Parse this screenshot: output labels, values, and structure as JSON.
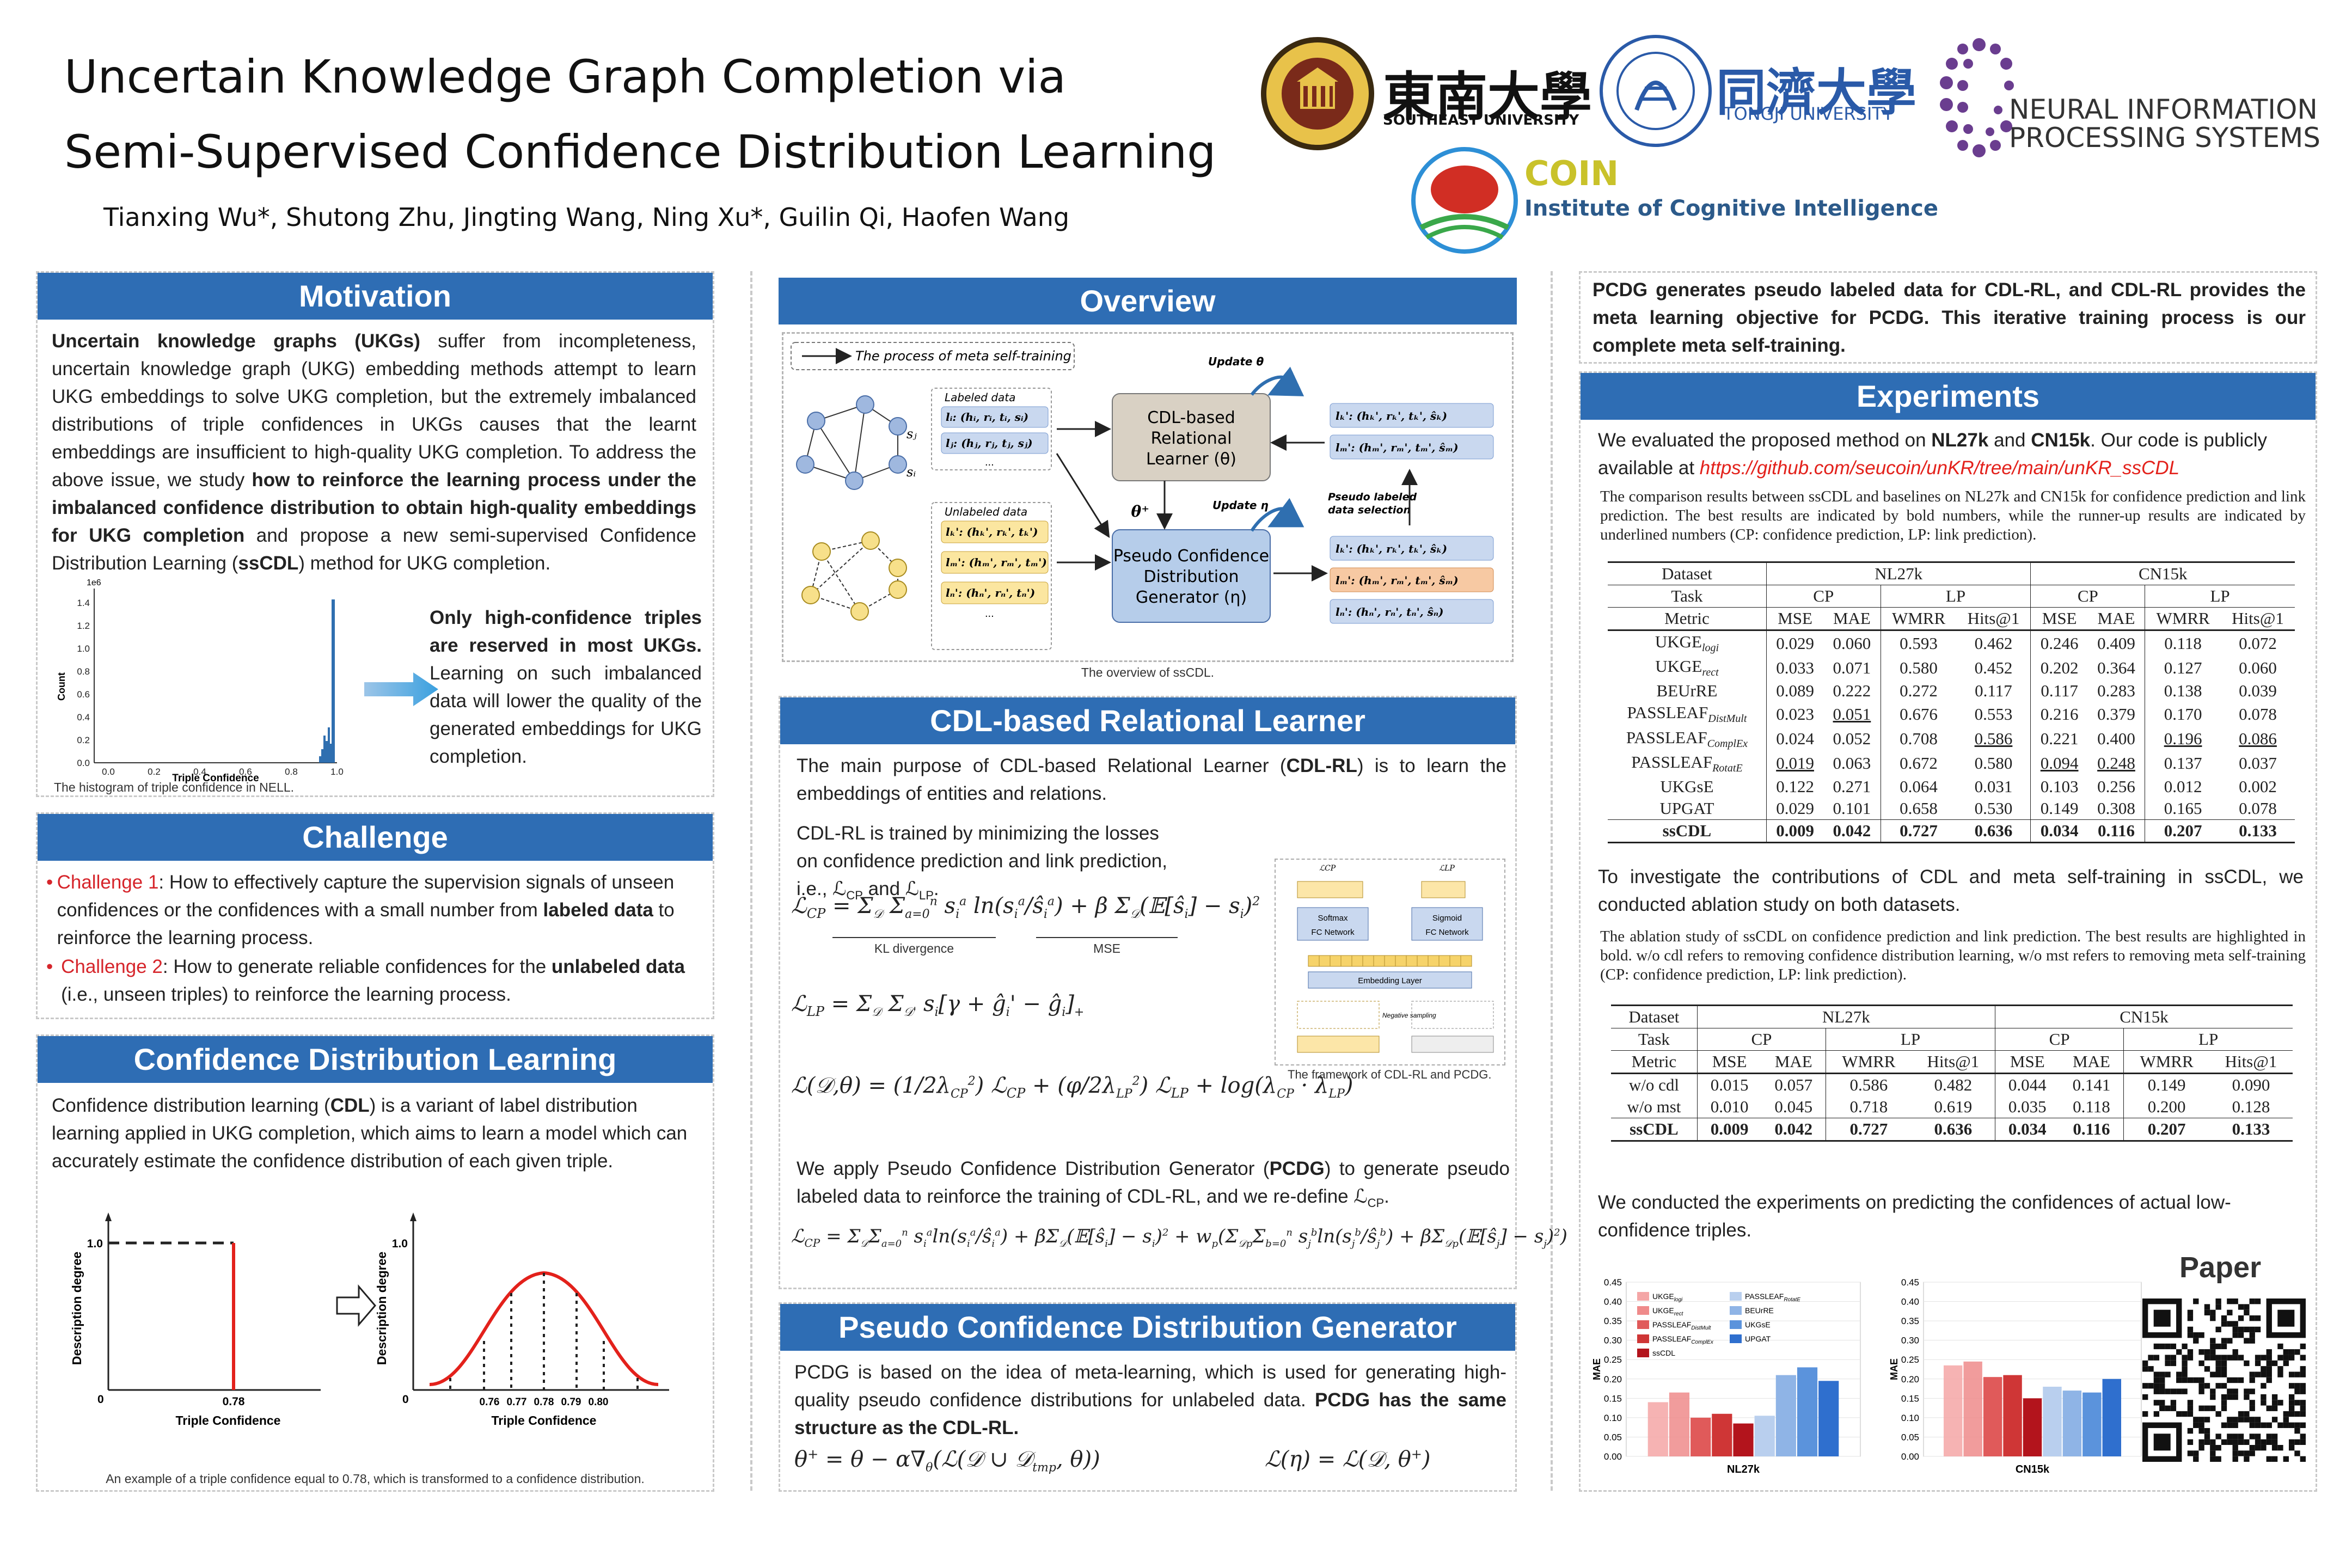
{
  "header": {
    "title_line1": "Uncertain Knowledge Graph Completion via",
    "title_line2": "Semi-Supervised Confidence Distribution Learning",
    "authors": "Tianxing Wu*, Shutong Zhu, Jingting Wang, Ning Xu*, Guilin Qi, Haofen Wang",
    "logos": {
      "seu_cn": "東南大學",
      "seu_en": "SOUTHEAST UNIVERSITY",
      "tongji_cn": "同濟大學",
      "tongji_en": "TONGJI UNIVERSITY",
      "neurips_1": "NEURAL INFORMATION",
      "neurips_2": "PROCESSING SYSTEMS",
      "coin": "COIN",
      "coin_sub": "Institute of Cognitive Intelligence"
    }
  },
  "motivation": {
    "title": "Motivation",
    "p_bold1": "Uncertain knowledge graphs (UKGs)",
    "p_1": " suffer from incompleteness, uncertain knowledge graph (UKG) embedding methods attempt to learn UKG embeddings to solve UKG completion, but the extremely imbalanced distributions of triple confidences in UKGs causes that the learnt embeddings are insufficient to high-quality UKG completion. To address the above issue, we study ",
    "p_bold2": "how to reinforce the learning process under the imbalanced confidence distribution to obtain high-quality embeddings for UKG completion",
    "p_2": " and propose a new semi-supervised Confidence Distribution Learning (",
    "p_bold3": "ssCDL",
    "p_3": ") method for UKG completion.",
    "hist_caption": "The histogram of triple confidence in NELL.",
    "hist_ylabel": "Count",
    "hist_xlabel": "Triple Confidence",
    "hist_scale": "1e6",
    "hist_yticks": [
      "0.0",
      "0.2",
      "0.4",
      "0.6",
      "0.8",
      "1.0",
      "1.2",
      "1.4"
    ],
    "hist_xticks": [
      "0.0",
      "0.2",
      "0.4",
      "0.6",
      "0.8",
      "1.0"
    ],
    "side_bold": "Only high-confidence triples are reserved in most UKGs.",
    "side_text": " Learning on such imbalanced data will lower the quality of the generated embeddings for UKG completion."
  },
  "challenge": {
    "title": "Challenge",
    "c1_label": "Challenge 1",
    "c1_a": ": How to effectively capture the supervision signals of unseen confidences or the confidences with a small number from ",
    "c1_bold": "labeled data",
    "c1_b": " to reinforce the learning process.",
    "c2_label": "Challenge 2",
    "c2_a": ": How to generate reliable confidences for the ",
    "c2_bold": "unlabeled data",
    "c2_b": " (i.e., unseen triples) to reinforce the learning process."
  },
  "cdl": {
    "title": "Confidence Distribution Learning",
    "p_a": "Confidence distribution learning (",
    "p_bold": "CDL",
    "p_b": ") is a variant of label distribution learning applied in UKG completion, which aims to learn a model which can accurately estimate the confidence distribution of each given triple.",
    "ylabel": "Description degree",
    "xlabel": "Triple Confidence",
    "left_x": "0.78",
    "ytick": "1.0",
    "zero": "0",
    "right_x": [
      "0.76",
      "0.77",
      "0.78",
      "0.79",
      "0.80"
    ],
    "caption": "An example of a triple confidence equal to 0.78, which is transformed to a confidence distribution."
  },
  "overview": {
    "title": "Overview",
    "legend": "The process of meta self-training",
    "labeled": "Labeled data",
    "unlabeled": "Unlabeled data",
    "learner": [
      "CDL-based",
      "Relational",
      "Learner (θ)"
    ],
    "generator": [
      "Pseudo Confidence",
      "Distribution",
      "Generator (η)"
    ],
    "update_theta": "Update θ",
    "update_eta": "Update η",
    "theta_plus": "θ⁺",
    "pseudo": [
      "Pseudo labeled",
      "data selection"
    ],
    "lab_items": [
      "lᵢ: (hᵢ, rᵢ, tᵢ, sᵢ)",
      "lⱼ: (hⱼ, rⱼ, tⱼ, sⱼ)"
    ],
    "unl_items": [
      "lₖ': (hₖ', rₖ', tₖ')",
      "lₘ': (hₘ', rₘ', tₘ')",
      "lₙ': (hₙ', rₙ', tₙ')"
    ],
    "out_top": [
      "lₖ': (hₖ', rₖ', tₖ', ŝₖ)",
      "lₘ': (hₘ', rₘ', tₘ', ŝₘ)"
    ],
    "out_bot": [
      "lₖ': (hₖ', rₖ', tₖ', ŝₖ)",
      "lₘ': (hₘ', rₘ', tₘ', ŝₘ)",
      "lₙ': (hₙ', rₙ', tₙ', ŝₙ)"
    ],
    "node_si": "sᵢ",
    "node_sj": "sⱼ",
    "ellipsis": "...",
    "caption": "The overview of ssCDL."
  },
  "cdlrl": {
    "title": "CDL-based Relational Learner",
    "p1_a": "The main purpose of CDL-based Relational Learner (",
    "p1_bold": "CDL-RL",
    "p1_b": ") is to learn the embeddings of entities and relations.",
    "p2": "CDL-RL is trained by minimizing the losses on confidence prediction and link prediction, i.e., ℒ",
    "p2_cp": "CP",
    "p2_and": " and ℒ",
    "p2_lp": "LP",
    "p2_end": ".",
    "kl": "KL divergence",
    "mse": "MSE",
    "fw_caption": "The framework of CDL-RL and PCDG.",
    "fw": {
      "softmax": "Softmax",
      "fc1": "FC Network",
      "sigmoid": "Sigmoid",
      "fc2": "FC Network",
      "emb": "Embedding Layer",
      "neg": "Negative sampling",
      "lcp": "ℒCP",
      "llp": "ℒLP"
    },
    "p3_a": "We apply Pseudo Confidence Distribution Generator (",
    "p3_bold": "PCDG",
    "p3_b": ") to generate pseudo labeled data to reinforce the training of CDL-RL, and we re-define ℒ",
    "p3_cp": "CP",
    "p3_end": "."
  },
  "pcdg": {
    "title": "Pseudo Confidence Distribution Generator",
    "p_a": "PCDG is based on the idea of meta-learning, which is used for generating high-quality pseudo confidence distributions for unlabeled data. ",
    "p_bold": "PCDG has the same structure as the CDL-RL."
  },
  "right": {
    "intro": "PCDG generates pseudo labeled data for CDL-RL, and CDL-RL provides the meta learning objective for PCDG. This iterative training process is our complete meta self-training.",
    "exp_title": "Experiments",
    "exp_a": "We evaluated the proposed method on ",
    "exp_b1": "NL27k",
    "exp_and": " and ",
    "exp_b2": "CN15k",
    "exp_c": ". Our code is publicly available at ",
    "link": "https://github.com/seucoin/unKR/tree/main/unKR_ssCDL",
    "t1_caption": "The comparison results between ssCDL and baselines on NL27k and CN15k for confidence prediction and link prediction. The best results are indicated by bold numbers, while the runner-up results are indicated by underlined numbers (CP: confidence prediction, LP: link prediction).",
    "abl_text": "To investigate the contributions of CDL and meta self-training in ssCDL, we conducted ablation study on both datasets.",
    "t2_caption": "The ablation study of ssCDL on confidence prediction and link prediction. The best results are highlighted in bold. w/o cdl refers to removing confidence distribution learning, w/o mst refers to removing meta self-training (CP: confidence prediction, LP: link prediction).",
    "low_text": "We conducted the experiments on predicting the confidences of actual low-confidence triples.",
    "paper": "Paper"
  },
  "table1": {
    "h_dataset": "Dataset",
    "h_task": "Task",
    "h_metric": "Metric",
    "datasets": [
      "NL27k",
      "CN15k"
    ],
    "tasks": [
      "CP",
      "LP",
      "CP",
      "LP"
    ],
    "metrics": [
      "MSE",
      "MAE",
      "WMRR",
      "Hits@1",
      "MSE",
      "MAE",
      "WMRR",
      "Hits@1"
    ],
    "rows": [
      {
        "name": "UKGE",
        "sub": "logi",
        "v": [
          "0.029",
          "0.060",
          "0.593",
          "0.462",
          "0.246",
          "0.409",
          "0.118",
          "0.072"
        ]
      },
      {
        "name": "UKGE",
        "sub": "rect",
        "v": [
          "0.033",
          "0.071",
          "0.580",
          "0.452",
          "0.202",
          "0.364",
          "0.127",
          "0.060"
        ]
      },
      {
        "name": "BEUrRE",
        "sub": "",
        "v": [
          "0.089",
          "0.222",
          "0.272",
          "0.117",
          "0.117",
          "0.283",
          "0.138",
          "0.039"
        ]
      },
      {
        "name": "PASSLEAF",
        "sub": "DistMult",
        "v": [
          "0.023",
          "0.051",
          "0.676",
          "0.553",
          "0.216",
          "0.379",
          "0.170",
          "0.078"
        ]
      },
      {
        "name": "PASSLEAF",
        "sub": "ComplEx",
        "v": [
          "0.024",
          "0.052",
          "0.708",
          "0.586",
          "0.221",
          "0.400",
          "0.196",
          "0.086"
        ]
      },
      {
        "name": "PASSLEAF",
        "sub": "RotatE",
        "v": [
          "0.019",
          "0.063",
          "0.672",
          "0.580",
          "0.094",
          "0.248",
          "0.137",
          "0.037"
        ]
      },
      {
        "name": "UKGsE",
        "sub": "",
        "v": [
          "0.122",
          "0.271",
          "0.064",
          "0.031",
          "0.103",
          "0.256",
          "0.012",
          "0.002"
        ]
      },
      {
        "name": "UPGAT",
        "sub": "",
        "v": [
          "0.029",
          "0.101",
          "0.658",
          "0.530",
          "0.149",
          "0.308",
          "0.165",
          "0.078"
        ]
      }
    ],
    "underline": [
      [
        3,
        1
      ],
      [
        4,
        3
      ],
      [
        5,
        0
      ],
      [
        5,
        4
      ],
      [
        5,
        5
      ],
      [
        4,
        6
      ],
      [
        4,
        7
      ]
    ],
    "ours": {
      "name": "ssCDL",
      "v": [
        "0.009",
        "0.042",
        "0.727",
        "0.636",
        "0.034",
        "0.116",
        "0.207",
        "0.133"
      ]
    }
  },
  "table2": {
    "rows": [
      {
        "name": "w/o cdl",
        "v": [
          "0.015",
          "0.057",
          "0.586",
          "0.482",
          "0.044",
          "0.141",
          "0.149",
          "0.090"
        ]
      },
      {
        "name": "w/o mst",
        "v": [
          "0.010",
          "0.045",
          "0.718",
          "0.619",
          "0.035",
          "0.118",
          "0.200",
          "0.128"
        ]
      }
    ],
    "ours": {
      "name": "ssCDL",
      "v": [
        "0.009",
        "0.042",
        "0.727",
        "0.636",
        "0.034",
        "0.116",
        "0.207",
        "0.133"
      ]
    }
  },
  "chart_data": [
    {
      "type": "bar",
      "title": "",
      "xlabel": "NL27k",
      "ylabel": "MAE",
      "ylim": [
        0,
        0.45
      ],
      "yticks": [
        "0.00",
        "0.05",
        "0.10",
        "0.15",
        "0.20",
        "0.25",
        "0.30",
        "0.35",
        "0.40",
        "0.45"
      ],
      "series": [
        {
          "name": "UKGE_logi",
          "values": [
            0.14
          ],
          "color": "#f4a6a6"
        },
        {
          "name": "UKGE_rect",
          "values": [
            0.165
          ],
          "color": "#ef8b8b"
        },
        {
          "name": "PASSLEAF_DistMult",
          "values": [
            0.1
          ],
          "color": "#e05a5a"
        },
        {
          "name": "PASSLEAF_ComplEx",
          "values": [
            0.11
          ],
          "color": "#cf3636"
        },
        {
          "name": "ssCDL",
          "values": [
            0.085
          ],
          "color": "#b3141c"
        },
        {
          "name": "PASSLEAF_RotatE",
          "values": [
            0.105
          ],
          "color": "#b9cfee"
        },
        {
          "name": "BEUrRE",
          "values": [
            0.21
          ],
          "color": "#8fb4e6"
        },
        {
          "name": "UKGsE",
          "values": [
            0.23
          ],
          "color": "#5b93dc"
        },
        {
          "name": "UPGAT",
          "values": [
            0.195
          ],
          "color": "#2f6fce"
        }
      ]
    },
    {
      "type": "bar",
      "title": "",
      "xlabel": "CN15k",
      "ylabel": "MAE",
      "ylim": [
        0,
        0.45
      ],
      "yticks": [
        "0.00",
        "0.05",
        "0.10",
        "0.15",
        "0.20",
        "0.25",
        "0.30",
        "0.35",
        "0.40",
        "0.45"
      ],
      "series": [
        {
          "name": "UKGE_logi",
          "values": [
            0.235
          ],
          "color": "#f4a6a6"
        },
        {
          "name": "UKGE_rect",
          "values": [
            0.245
          ],
          "color": "#ef8b8b"
        },
        {
          "name": "PASSLEAF_DistMult",
          "values": [
            0.205
          ],
          "color": "#e05a5a"
        },
        {
          "name": "PASSLEAF_ComplEx",
          "values": [
            0.21
          ],
          "color": "#cf3636"
        },
        {
          "name": "ssCDL",
          "values": [
            0.15
          ],
          "color": "#b3141c"
        },
        {
          "name": "PASSLEAF_RotatE",
          "values": [
            0.18
          ],
          "color": "#b9cfee"
        },
        {
          "name": "BEUrRE",
          "values": [
            0.17
          ],
          "color": "#8fb4e6"
        },
        {
          "name": "UKGsE",
          "values": [
            0.165
          ],
          "color": "#5b93dc"
        },
        {
          "name": "UPGAT",
          "values": [
            0.2
          ],
          "color": "#2f6fce"
        }
      ]
    }
  ],
  "chart_legend": [
    {
      "base": "UKGE",
      "sub": "logi"
    },
    {
      "base": "UKGE",
      "sub": "rect"
    },
    {
      "base": "PASSLEAF",
      "sub": "DistMult"
    },
    {
      "base": "PASSLEAF",
      "sub": "ComplEx"
    },
    {
      "base": "ssCDL",
      "sub": ""
    },
    {
      "base": "PASSLEAF",
      "sub": "RotatE"
    },
    {
      "base": "BEUrRE",
      "sub": ""
    },
    {
      "base": "UKGsE",
      "sub": ""
    },
    {
      "base": "UPGAT",
      "sub": ""
    }
  ]
}
